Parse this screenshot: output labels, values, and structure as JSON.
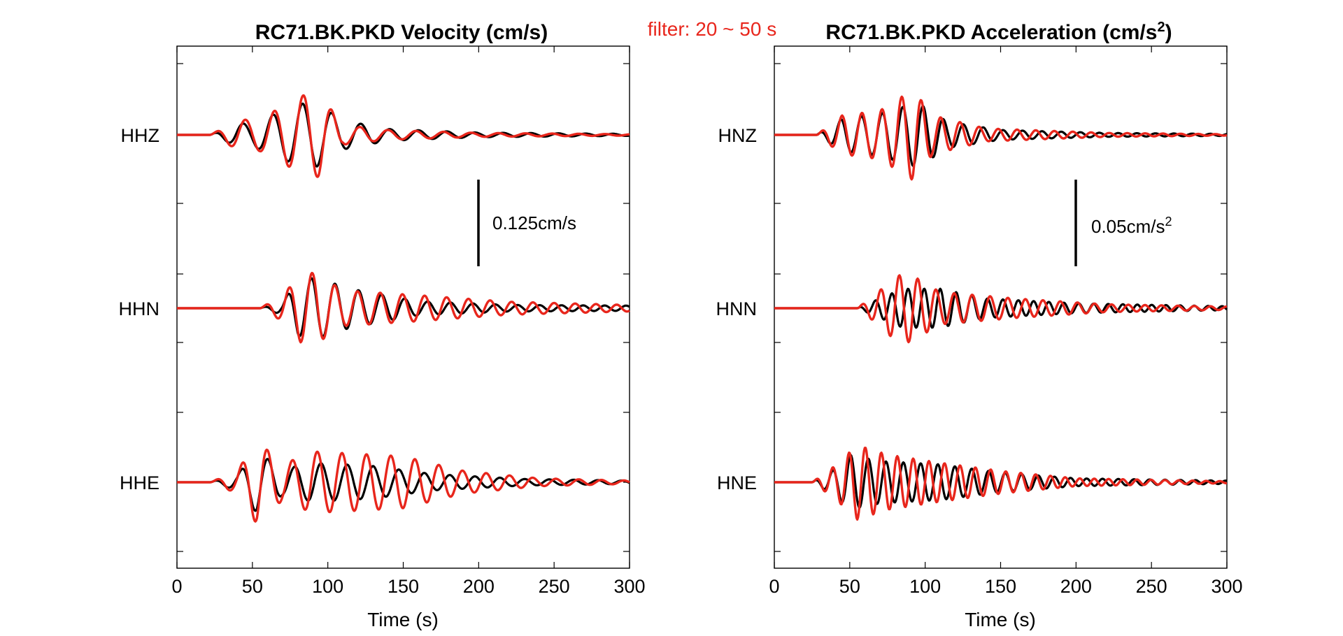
{
  "figure": {
    "filter_label": "filter: 20 ~ 50 s"
  },
  "chart_data": [
    {
      "type": "line",
      "title": "RC71.BK.PKD Velocity (cm/s)",
      "xlabel": "Time (s)",
      "ylabel": "",
      "xlim": [
        0,
        300
      ],
      "xticks": [
        0,
        50,
        100,
        150,
        200,
        250,
        300
      ],
      "xtick_labels": [
        "0",
        "50",
        "100",
        "150",
        "200",
        "250",
        "300"
      ],
      "grid": false,
      "colors": {
        "black": "#000000",
        "red": "#e8261c"
      },
      "scale_bar": {
        "label": "0.125cm/s",
        "x": 200
      },
      "traces": [
        {
          "channel": "HHZ",
          "black": {
            "onset": 22,
            "env": [
              [
                22,
                0.0
              ],
              [
                40,
                0.35
              ],
              [
                50,
                0.35
              ],
              [
                80,
                0.95
              ],
              [
                92,
                1.0
              ],
              [
                110,
                0.45
              ],
              [
                140,
                0.18
              ],
              [
                200,
                0.07
              ],
              [
                300,
                0.03
              ]
            ],
            "amp": 0.8,
            "period": 20,
            "phase": 0.3
          },
          "red": {
            "onset": 22,
            "env": [
              [
                22,
                0.0
              ],
              [
                40,
                0.45
              ],
              [
                55,
                0.5
              ],
              [
                85,
                1.25
              ],
              [
                94,
                1.3
              ],
              [
                110,
                0.3
              ],
              [
                140,
                0.15
              ],
              [
                200,
                0.06
              ],
              [
                300,
                0.02
              ]
            ],
            "amp": 0.8,
            "period": 19.5,
            "phase": 0.1
          }
        },
        {
          "channel": "HHN",
          "black": {
            "onset": 55,
            "env": [
              [
                55,
                0.0
              ],
              [
                70,
                0.2
              ],
              [
                80,
                0.85
              ],
              [
                92,
                0.95
              ],
              [
                115,
                0.6
              ],
              [
                160,
                0.22
              ],
              [
                220,
                0.1
              ],
              [
                300,
                0.08
              ]
            ],
            "amp": 0.8,
            "period": 16,
            "phase": 0.2
          },
          "red": {
            "onset": 55,
            "env": [
              [
                55,
                0.0
              ],
              [
                70,
                0.4
              ],
              [
                82,
                1.05
              ],
              [
                92,
                1.1
              ],
              [
                110,
                0.55
              ],
              [
                160,
                0.4
              ],
              [
                220,
                0.2
              ],
              [
                300,
                0.1
              ]
            ],
            "amp": 0.8,
            "period": 15.5,
            "phase": 0.0
          }
        },
        {
          "channel": "HHE",
          "black": {
            "onset": 22,
            "env": [
              [
                22,
                0.0
              ],
              [
                40,
                0.25
              ],
              [
                53,
                0.95
              ],
              [
                70,
                0.4
              ],
              [
                90,
                0.6
              ],
              [
                130,
                0.5
              ],
              [
                170,
                0.25
              ],
              [
                230,
                0.1
              ],
              [
                300,
                0.05
              ]
            ],
            "amp": 0.8,
            "period": 18,
            "phase": 0.2
          },
          "red": {
            "onset": 22,
            "env": [
              [
                22,
                0.0
              ],
              [
                40,
                0.35
              ],
              [
                53,
                1.3
              ],
              [
                70,
                0.55
              ],
              [
                90,
                0.95
              ],
              [
                150,
                0.8
              ],
              [
                190,
                0.35
              ],
              [
                240,
                0.12
              ],
              [
                300,
                0.05
              ]
            ],
            "amp": 0.8,
            "period": 17,
            "phase": 0.0
          }
        }
      ]
    },
    {
      "type": "line",
      "title": "RC71.BK.PKD Acceleration (cm/s",
      "title_sup": "2",
      "title_end": ")",
      "xlabel": "Time (s)",
      "ylabel": "",
      "xlim": [
        0,
        300
      ],
      "xticks": [
        0,
        50,
        100,
        150,
        200,
        250,
        300
      ],
      "xtick_labels": [
        "0",
        "50",
        "100",
        "150",
        "200",
        "250",
        "300"
      ],
      "grid": false,
      "colors": {
        "black": "#000000",
        "red": "#e8261c"
      },
      "scale_bar": {
        "label": "0.05cm/s",
        "sup": "2",
        "x": 200
      },
      "traces": [
        {
          "channel": "HNZ",
          "black": {
            "onset": 28,
            "env": [
              [
                28,
                0.0
              ],
              [
                45,
                0.5
              ],
              [
                70,
                0.65
              ],
              [
                95,
                1.0
              ],
              [
                115,
                0.4
              ],
              [
                150,
                0.15
              ],
              [
                220,
                0.06
              ],
              [
                300,
                0.03
              ]
            ],
            "amp": 0.8,
            "period": 14,
            "phase": 0.2
          },
          "red": {
            "onset": 28,
            "env": [
              [
                28,
                0.0
              ],
              [
                45,
                0.6
              ],
              [
                70,
                0.75
              ],
              [
                92,
                1.4
              ],
              [
                105,
                0.6
              ],
              [
                140,
                0.2
              ],
              [
                220,
                0.06
              ],
              [
                300,
                0.02
              ]
            ],
            "amp": 0.8,
            "period": 13.5,
            "phase": 0.0
          }
        },
        {
          "channel": "HNN",
          "black": {
            "onset": 55,
            "env": [
              [
                55,
                0.0
              ],
              [
                70,
                0.3
              ],
              [
                85,
                0.6
              ],
              [
                110,
                0.6
              ],
              [
                140,
                0.3
              ],
              [
                200,
                0.15
              ],
              [
                300,
                0.06
              ]
            ],
            "amp": 0.8,
            "period": 11,
            "phase": 0.3
          },
          "red": {
            "onset": 55,
            "env": [
              [
                55,
                0.0
              ],
              [
                70,
                0.55
              ],
              [
                80,
                1.0
              ],
              [
                90,
                1.05
              ],
              [
                110,
                0.5
              ],
              [
                160,
                0.3
              ],
              [
                220,
                0.12
              ],
              [
                300,
                0.05
              ]
            ],
            "amp": 0.8,
            "period": 12.5,
            "phase": 0.0
          }
        },
        {
          "channel": "HNE",
          "black": {
            "onset": 25,
            "env": [
              [
                25,
                0.0
              ],
              [
                40,
                0.4
              ],
              [
                50,
                0.85
              ],
              [
                70,
                0.65
              ],
              [
                110,
                0.55
              ],
              [
                150,
                0.3
              ],
              [
                200,
                0.12
              ],
              [
                300,
                0.05
              ]
            ],
            "amp": 0.8,
            "period": 12,
            "phase": 0.2
          },
          "red": {
            "onset": 25,
            "env": [
              [
                25,
                0.0
              ],
              [
                40,
                0.5
              ],
              [
                55,
                1.15
              ],
              [
                75,
                0.85
              ],
              [
                110,
                0.6
              ],
              [
                150,
                0.35
              ],
              [
                200,
                0.12
              ],
              [
                300,
                0.03
              ]
            ],
            "amp": 0.8,
            "period": 11,
            "phase": 0.0
          }
        }
      ]
    }
  ]
}
